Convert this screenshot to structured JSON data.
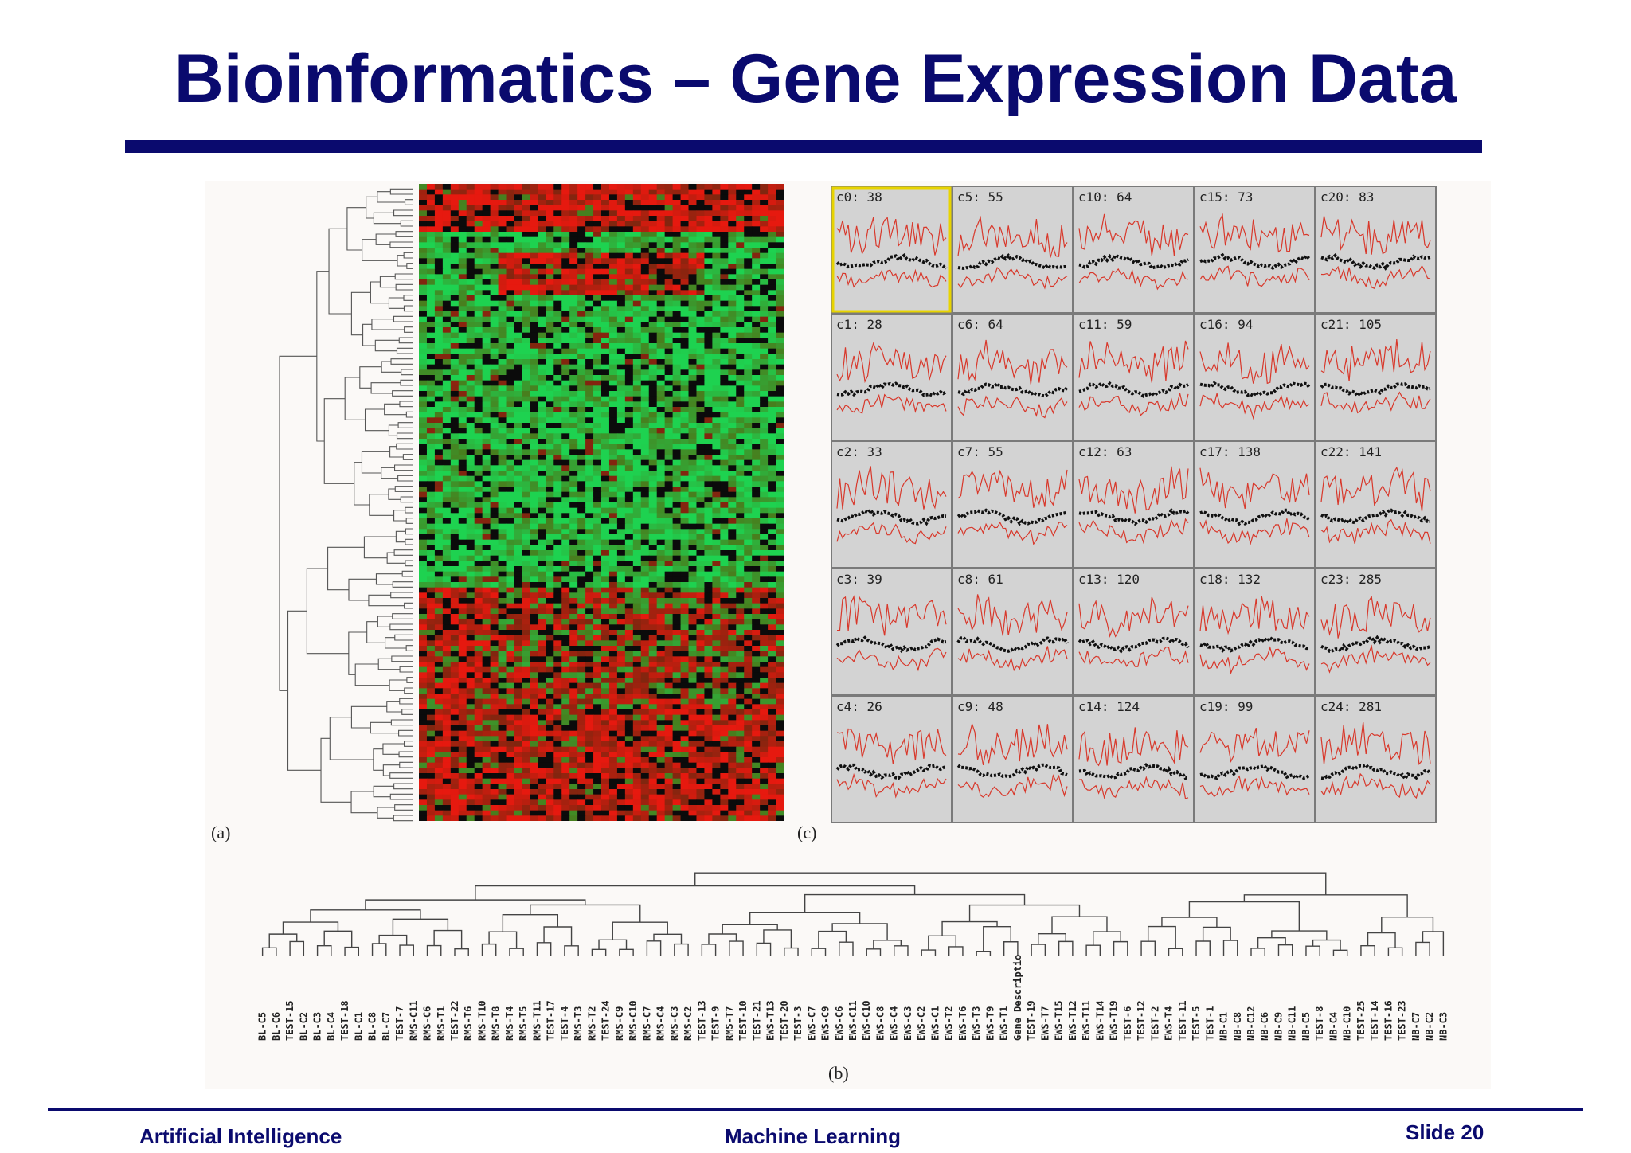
{
  "slide": {
    "title": "Bioinformatics – Gene Expression Data",
    "footer_left": "Artificial Intelligence",
    "footer_center": "Machine Learning",
    "footer_right": "Slide 20"
  },
  "figure": {
    "panel_a_label": "(a)",
    "panel_b_label": "(b)",
    "panel_c_label": "(c)",
    "clusters": [
      {
        "id": "c0",
        "count": "38"
      },
      {
        "id": "c5",
        "count": "55"
      },
      {
        "id": "c10",
        "count": "64"
      },
      {
        "id": "c15",
        "count": "73"
      },
      {
        "id": "c20",
        "count": "83"
      },
      {
        "id": "c1",
        "count": "28"
      },
      {
        "id": "c6",
        "count": "64"
      },
      {
        "id": "c11",
        "count": "59"
      },
      {
        "id": "c16",
        "count": "94"
      },
      {
        "id": "c21",
        "count": "105"
      },
      {
        "id": "c2",
        "count": "33"
      },
      {
        "id": "c7",
        "count": "55"
      },
      {
        "id": "c12",
        "count": "63"
      },
      {
        "id": "c17",
        "count": "138"
      },
      {
        "id": "c22",
        "count": "141"
      },
      {
        "id": "c3",
        "count": "39"
      },
      {
        "id": "c8",
        "count": "61"
      },
      {
        "id": "c13",
        "count": "120"
      },
      {
        "id": "c18",
        "count": "132"
      },
      {
        "id": "c23",
        "count": "285"
      },
      {
        "id": "c4",
        "count": "26"
      },
      {
        "id": "c9",
        "count": "48"
      },
      {
        "id": "c14",
        "count": "124"
      },
      {
        "id": "c19",
        "count": "99"
      },
      {
        "id": "c24",
        "count": "281"
      }
    ],
    "sample_labels": [
      "BL-C5",
      "BL-C6",
      "TEST-15",
      "BL-C2",
      "BL-C3",
      "BL-C4",
      "TEST-18",
      "BL-C1",
      "BL-C8",
      "BL-C7",
      "TEST-7",
      "RMS-C11",
      "RMS-C6",
      "RMS-T1",
      "TEST-22",
      "RMS-T6",
      "RMS-T10",
      "RMS-T8",
      "RMS-T4",
      "RMS-T5",
      "RMS-T11",
      "TEST-17",
      "TEST-4",
      "RMS-T3",
      "RMS-T2",
      "TEST-24",
      "RMS-C9",
      "RMS-C10",
      "RMS-C7",
      "RMS-C4",
      "RMS-C3",
      "RMS-C2",
      "TEST-13",
      "TEST-9",
      "RMS-T7",
      "TEST-10",
      "TEST-21",
      "EWS-T13",
      "TEST-20",
      "TEST-3",
      "EWS-C7",
      "EWS-C9",
      "EWS-C6",
      "EWS-C11",
      "EWS-C10",
      "EWS-C8",
      "EWS-C4",
      "EWS-C3",
      "EWS-C2",
      "EWS-C1",
      "EWS-T2",
      "EWS-T6",
      "EWS-T3",
      "EWS-T9",
      "EWS-T1",
      "Gene Descriptio",
      "TEST-19",
      "EWS-T7",
      "EWS-T15",
      "EWS-T12",
      "EWS-T11",
      "EWS-T14",
      "EWS-T19",
      "TEST-6",
      "TEST-12",
      "TEST-2",
      "EWS-T4",
      "TEST-11",
      "TEST-5",
      "TEST-1",
      "NB-C1",
      "NB-C8",
      "NB-C12",
      "NB-C6",
      "NB-C9",
      "NB-C11",
      "NB-C5",
      "TEST-8",
      "NB-C4",
      "NB-C10",
      "TEST-25",
      "TEST-14",
      "TEST-16",
      "TEST-23",
      "NB-C7",
      "NB-C2",
      "NB-C3"
    ]
  }
}
